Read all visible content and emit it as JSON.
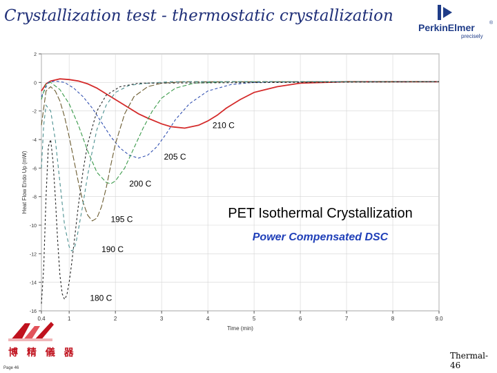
{
  "slide": {
    "title": "Crystallization test - thermostatic crystallization",
    "slide_number": "Thermal-46",
    "page_id": "Page 46"
  },
  "brand": {
    "logo_text": "PerkinElmer",
    "tagline": "precisely",
    "reg_mark": "®",
    "color": "#1f3c88"
  },
  "corporate": {
    "name": "博 精 儀 器",
    "color": "#c0121e"
  },
  "chart_data": {
    "type": "line",
    "title": "PET Isothermal Crystallization",
    "subtitle": "Power Compensated DSC",
    "xlabel": "Time (min)",
    "ylabel": "Heat Flow Endo Up (mW)",
    "xlim": [
      0.4,
      9.0
    ],
    "ylim": [
      -16,
      2
    ],
    "x_ticks": [
      0.4,
      1,
      2,
      3,
      4,
      5,
      6,
      7,
      8,
      9
    ],
    "x_tick_labels": [
      "0.4",
      "1",
      "2",
      "3",
      "4",
      "5",
      "6",
      "7",
      "8",
      "9.0"
    ],
    "y_ticks": [
      2,
      0,
      -2,
      -4,
      -6,
      -8,
      -10,
      -12,
      -14,
      -16
    ],
    "y_tick_labels": [
      "2",
      "0",
      "-2",
      "-4",
      "-6",
      "-8",
      "-10",
      "-12",
      "-14",
      "-16"
    ],
    "grid": true,
    "series": [
      {
        "name": "210 C",
        "color": "#d42a2a",
        "dash": "",
        "x": [
          0.4,
          0.5,
          0.6,
          0.8,
          1.0,
          1.2,
          1.4,
          1.6,
          1.8,
          2.0,
          2.2,
          2.5,
          2.7,
          3.0,
          3.2,
          3.5,
          3.8,
          4.0,
          4.2,
          4.4,
          4.7,
          5.0,
          5.5,
          6.0,
          7.0,
          8.0,
          9.0
        ],
        "y": [
          -0.6,
          -0.1,
          0.1,
          0.25,
          0.2,
          0.1,
          -0.1,
          -0.4,
          -0.8,
          -1.2,
          -1.6,
          -2.2,
          -2.5,
          -2.9,
          -3.1,
          -3.2,
          -3.0,
          -2.7,
          -2.3,
          -1.8,
          -1.2,
          -0.7,
          -0.3,
          -0.05,
          0.05,
          0.05,
          0.05
        ]
      },
      {
        "name": "205 C",
        "color": "#2e4db0",
        "dash": "4,3",
        "x": [
          0.4,
          0.55,
          0.7,
          0.9,
          1.1,
          1.3,
          1.5,
          1.7,
          1.9,
          2.1,
          2.3,
          2.5,
          2.7,
          2.9,
          3.1,
          3.3,
          3.6,
          4.0,
          4.5,
          5.0,
          6.0,
          9.0
        ],
        "y": [
          -1.0,
          0.0,
          0.1,
          0.0,
          -0.4,
          -1.0,
          -1.8,
          -2.8,
          -3.8,
          -4.6,
          -5.1,
          -5.3,
          -5.1,
          -4.5,
          -3.6,
          -2.6,
          -1.5,
          -0.6,
          -0.15,
          0.0,
          0.05,
          0.05
        ]
      },
      {
        "name": "200 C",
        "color": "#3a9a4a",
        "dash": "6,3",
        "x": [
          0.4,
          0.5,
          0.6,
          0.8,
          1.0,
          1.2,
          1.4,
          1.6,
          1.8,
          1.9,
          2.0,
          2.2,
          2.4,
          2.6,
          2.8,
          3.0,
          3.3,
          3.7,
          4.5,
          9.0
        ],
        "y": [
          -1.2,
          -0.1,
          0.0,
          -0.5,
          -1.5,
          -3.0,
          -4.8,
          -6.3,
          -7.0,
          -7.1,
          -6.9,
          -6.0,
          -4.6,
          -3.2,
          -2.0,
          -1.1,
          -0.4,
          -0.05,
          0.05,
          0.05
        ]
      },
      {
        "name": "195 C",
        "color": "#6a5a2e",
        "dash": "8,3",
        "x": [
          0.4,
          0.5,
          0.6,
          0.7,
          0.8,
          0.9,
          1.0,
          1.1,
          1.2,
          1.3,
          1.4,
          1.5,
          1.6,
          1.7,
          1.8,
          1.9,
          2.0,
          2.2,
          2.4,
          2.7,
          3.0,
          3.5,
          9.0
        ],
        "y": [
          -3.0,
          -0.6,
          -0.3,
          -0.6,
          -1.3,
          -2.4,
          -3.8,
          -5.4,
          -7.0,
          -8.4,
          -9.3,
          -9.7,
          -9.5,
          -8.7,
          -7.4,
          -5.8,
          -4.3,
          -2.2,
          -1.0,
          -0.3,
          -0.05,
          0.05,
          0.05
        ]
      },
      {
        "name": "190 C",
        "color": "#4a8f8f",
        "dash": "5,4",
        "x": [
          0.4,
          0.45,
          0.5,
          0.6,
          0.7,
          0.8,
          0.9,
          1.0,
          1.05,
          1.1,
          1.15,
          1.2,
          1.3,
          1.4,
          1.5,
          1.6,
          1.8,
          2.0,
          2.3,
          2.7,
          3.2,
          9.0
        ],
        "y": [
          -6.0,
          -3.0,
          -1.6,
          -2.0,
          -4.0,
          -7.0,
          -10.0,
          -11.5,
          -11.8,
          -11.7,
          -11.2,
          -10.3,
          -8.5,
          -6.5,
          -4.8,
          -3.3,
          -1.6,
          -0.7,
          -0.2,
          -0.05,
          0.05,
          0.05
        ]
      },
      {
        "name": "180 C",
        "color": "#222222",
        "dash": "3,3",
        "x": [
          0.4,
          0.45,
          0.5,
          0.55,
          0.6,
          0.65,
          0.7,
          0.75,
          0.8,
          0.85,
          0.9,
          0.95,
          1.0,
          1.05,
          1.1,
          1.2,
          1.3,
          1.4,
          1.6,
          1.8,
          2.1,
          2.5,
          9.0
        ],
        "y": [
          -15.5,
          -13.0,
          -8.0,
          -4.5,
          -4.0,
          -5.5,
          -8.0,
          -11.0,
          -13.5,
          -14.8,
          -15.2,
          -14.9,
          -14.0,
          -12.8,
          -11.4,
          -8.6,
          -6.2,
          -4.3,
          -2.0,
          -0.9,
          -0.3,
          -0.05,
          0.05
        ]
      }
    ],
    "annotations": [
      {
        "text": "210 C",
        "x": 4.1,
        "y": -3.0
      },
      {
        "text": "205 C",
        "x": 3.05,
        "y": -5.2
      },
      {
        "text": "200 C",
        "x": 2.3,
        "y": -7.1
      },
      {
        "text": "195 C",
        "x": 1.9,
        "y": -9.6
      },
      {
        "text": "190 C",
        "x": 1.7,
        "y": -11.7
      },
      {
        "text": "180 C",
        "x": 1.45,
        "y": -15.1
      }
    ]
  }
}
